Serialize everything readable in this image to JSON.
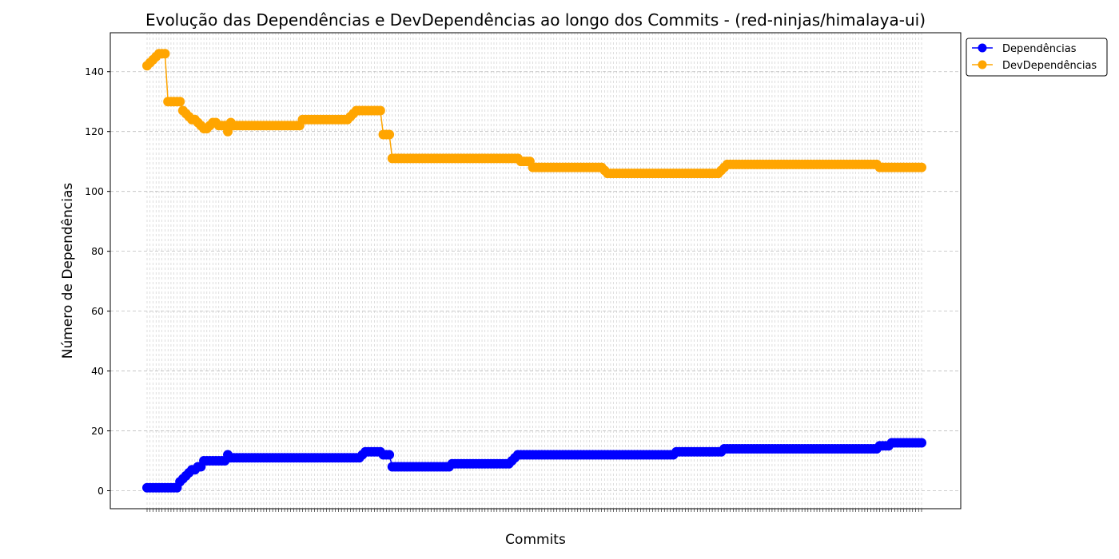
{
  "chart_data": {
    "type": "line",
    "title": "Evolução das Dependências e DevDependências ao longo dos Commits - (red-ninjas/himalaya-ui)",
    "xlabel": "Commits",
    "ylabel": "Número de Dependências",
    "ylim": [
      -6,
      153
    ],
    "yticks": [
      0,
      20,
      40,
      60,
      80,
      100,
      120,
      140
    ],
    "grid": true,
    "legend_position": "top-right, outside plot",
    "n_commits": 260,
    "series": [
      {
        "name": "Dependências",
        "color": "#0000ff",
        "segments": [
          [
            0,
            1
          ],
          [
            10,
            1
          ],
          [
            11,
            3
          ],
          [
            12,
            4
          ],
          [
            13,
            5
          ],
          [
            14,
            6
          ],
          [
            15,
            7
          ],
          [
            16,
            7
          ],
          [
            17,
            8
          ],
          [
            18,
            8
          ],
          [
            19,
            10
          ],
          [
            26,
            10
          ],
          [
            27,
            12
          ],
          [
            28,
            11
          ],
          [
            71,
            11
          ],
          [
            72,
            12
          ],
          [
            73,
            13
          ],
          [
            78,
            13
          ],
          [
            79,
            12
          ],
          [
            81,
            12
          ],
          [
            82,
            8
          ],
          [
            101,
            8
          ],
          [
            102,
            9
          ],
          [
            121,
            9
          ],
          [
            122,
            10
          ],
          [
            123,
            11
          ],
          [
            124,
            12
          ],
          [
            176,
            12
          ],
          [
            177,
            13
          ],
          [
            192,
            13
          ],
          [
            193,
            14
          ],
          [
            244,
            14
          ],
          [
            245,
            15
          ],
          [
            248,
            15
          ],
          [
            249,
            16
          ],
          [
            259,
            16
          ]
        ]
      },
      {
        "name": "DevDependências",
        "color": "#ffa500",
        "segments": [
          [
            0,
            142
          ],
          [
            1,
            143
          ],
          [
            2,
            144
          ],
          [
            3,
            145
          ],
          [
            4,
            146
          ],
          [
            6,
            146
          ],
          [
            7,
            130
          ],
          [
            11,
            130
          ],
          [
            12,
            127
          ],
          [
            13,
            126
          ],
          [
            14,
            125
          ],
          [
            15,
            124
          ],
          [
            16,
            124
          ],
          [
            17,
            123
          ],
          [
            18,
            122
          ],
          [
            19,
            121
          ],
          [
            20,
            121
          ],
          [
            21,
            122
          ],
          [
            22,
            123
          ],
          [
            24,
            122
          ],
          [
            26,
            122
          ],
          [
            27,
            120
          ],
          [
            28,
            123
          ],
          [
            29,
            122
          ],
          [
            51,
            122
          ],
          [
            52,
            124
          ],
          [
            67,
            124
          ],
          [
            68,
            125
          ],
          [
            69,
            126
          ],
          [
            70,
            127
          ],
          [
            78,
            127
          ],
          [
            79,
            119
          ],
          [
            81,
            119
          ],
          [
            82,
            111
          ],
          [
            124,
            111
          ],
          [
            125,
            110
          ],
          [
            128,
            110
          ],
          [
            129,
            108
          ],
          [
            152,
            108
          ],
          [
            153,
            107
          ],
          [
            154,
            106
          ],
          [
            191,
            106
          ],
          [
            192,
            107
          ],
          [
            193,
            108
          ],
          [
            194,
            109
          ],
          [
            244,
            109
          ],
          [
            245,
            108
          ],
          [
            259,
            108
          ]
        ]
      }
    ]
  }
}
